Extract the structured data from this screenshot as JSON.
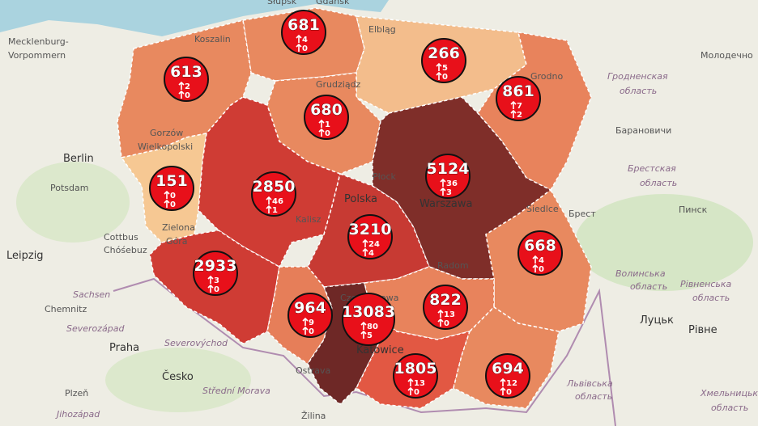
{
  "places": [
    "Berlin",
    "Potsdam",
    "Cottbus",
    "Chóśebuz",
    "Leipzig",
    "Sachsen",
    "Chemnitz",
    "Severozápad",
    "Praha",
    "Česko",
    "Plzeň",
    "Jihozápad",
    "Severovýchod",
    "Střední Morava",
    "Ostrava",
    "Žilina",
    "Mecklenburg-",
    "Vorpommern",
    "Молодечно",
    "Гродненская",
    "область",
    "Барановичи",
    "Брестская",
    "область",
    "Брест",
    "Пинск",
    "Волинська",
    "область",
    "Рівненська",
    "область",
    "Луцьк",
    "Рівне",
    "Львівська",
    "область",
    "Хмельницька",
    "область",
    "Koszalin",
    "Słupsk",
    "Gdańsk",
    "Elbląg",
    "Grudziądz",
    "Grodno",
    "Gorzów",
    "Wielkopolski",
    "Zielona",
    "Góra",
    "Płock",
    "Warszawa",
    "Kalisz",
    "Polska",
    "Radom",
    "Siedlce",
    "Katowice",
    "Częstochowa"
  ],
  "regions": [
    {
      "count": 681,
      "up": 4,
      "up2": 0,
      "color": "#e8895f"
    },
    {
      "count": 613,
      "up": 2,
      "up2": 0,
      "color": "#e8895f"
    },
    {
      "count": 266,
      "up": 5,
      "up2": 0,
      "color": "#f3bd8c"
    },
    {
      "count": 861,
      "up": 7,
      "up2": 2,
      "color": "#e8835c"
    },
    {
      "count": 680,
      "up": 1,
      "up2": 0,
      "color": "#e8895f"
    },
    {
      "count": 151,
      "up": 0,
      "up2": 0,
      "color": "#f6c893"
    },
    {
      "count": 2850,
      "up": 46,
      "up2": 1,
      "color": "#cf3c34"
    },
    {
      "count": 5124,
      "up": 36,
      "up2": 3,
      "color": "#7f2e29"
    },
    {
      "count": 3210,
      "up": 24,
      "up2": 4,
      "color": "#c73a33"
    },
    {
      "count": 2933,
      "up": 3,
      "up2": 0,
      "color": "#cf3c34"
    },
    {
      "count": 668,
      "up": 4,
      "up2": 0,
      "color": "#e8895f"
    },
    {
      "count": 964,
      "up": 9,
      "up2": 0,
      "color": "#e67e59"
    },
    {
      "count": 13083,
      "up": 80,
      "up2": 5,
      "color": "#6e2826"
    },
    {
      "count": 822,
      "up": 13,
      "up2": 0,
      "color": "#e8835c"
    },
    {
      "count": 1805,
      "up": 13,
      "up2": 0,
      "color": "#e25843"
    },
    {
      "count": 694,
      "up": 12,
      "up2": 0,
      "color": "#e8895f"
    }
  ]
}
